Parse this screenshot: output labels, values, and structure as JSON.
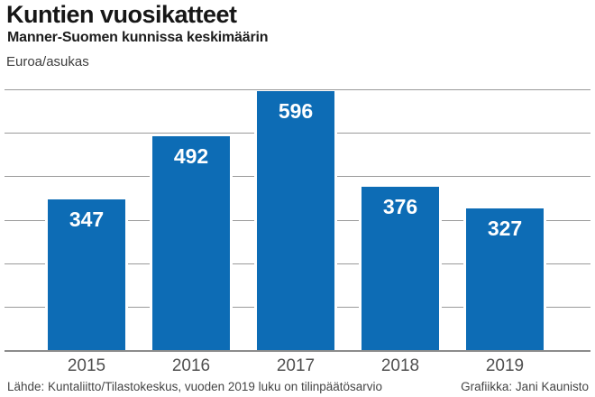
{
  "header": {
    "title": "Kuntien vuosikatteet",
    "subtitle": "Manner-Suomen kunnissa keskimäärin",
    "unit_label": "Euroa/asukas"
  },
  "chart_data": {
    "type": "bar",
    "categories": [
      "2015",
      "2016",
      "2017",
      "2018",
      "2019"
    ],
    "values": [
      347,
      492,
      596,
      376,
      327
    ],
    "title": "Kuntien vuosikatteet",
    "subtitle": "Manner-Suomen kunnissa keskimäärin",
    "xlabel": "",
    "ylabel": "Euroa/asukas",
    "ylim": [
      0,
      600
    ],
    "gridline_step": 100,
    "grid": true,
    "legend": false,
    "bar_color": "#0d6cb5",
    "value_label_color": "#ffffff",
    "grid_color": "#9a9a9a"
  },
  "footer": {
    "source": "Lähde: Kuntaliitto/Tilastokeskus, vuoden 2019 luku on tilinpäätösarvio",
    "credit": "Grafiikka: Jani Kaunisto"
  }
}
